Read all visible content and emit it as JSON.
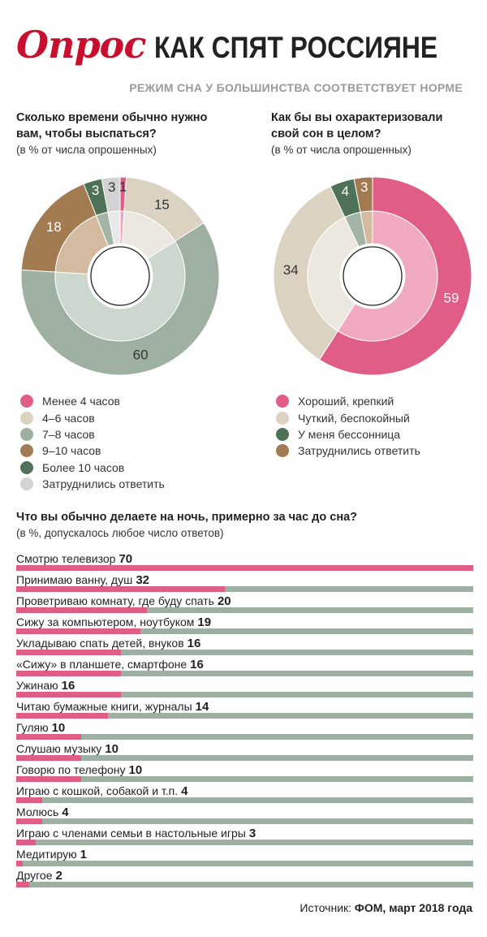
{
  "header": {
    "logo": "Опрос",
    "title": "КАК СПЯТ РОССИЯНЕ",
    "subtitle": "РЕЖИМ СНА У БОЛЬШИНСТВА СООТВЕТСТВУЕТ НОРМЕ"
  },
  "chart_data": [
    {
      "type": "pie",
      "title": "Сколько времени обычно нужно вам, чтобы выспаться?",
      "title_lines": [
        "Сколько времени обычно нужно",
        "вам, чтобы выспаться?"
      ],
      "subtitle": "(в % от числа опрошенных)",
      "legend_position": "bottom",
      "slices": [
        {
          "name": "Менее 4 часов",
          "value": 1,
          "outer": "#e05d86",
          "inner": "#f1a9c0"
        },
        {
          "name": "4–6 часов",
          "value": 15,
          "outer": "#dcd2c1",
          "inner": "#ede8df"
        },
        {
          "name": "7–8 часов",
          "value": 60,
          "outer": "#9db0a1",
          "inner": "#ccd8cd"
        },
        {
          "name": "9–10 часов",
          "value": 18,
          "outer": "#a37b52",
          "inner": "#d4bba0"
        },
        {
          "name": "Более 10 часов",
          "value": 3,
          "outer": "#4f7157",
          "inner": "#a2b5a4"
        },
        {
          "name": "Затруднились ответить",
          "value": 3,
          "outer": "#d3d3d3",
          "inner": "#e8e8e8"
        }
      ]
    },
    {
      "type": "pie",
      "title": "Как бы вы охарактеризовали свой сон в целом?",
      "title_lines": [
        "Как бы вы охарактеризовали",
        "свой сон в целом?"
      ],
      "subtitle": "(в % от числа опрошенных)",
      "legend_position": "bottom",
      "slices": [
        {
          "name": "Хороший, крепкий",
          "value": 59,
          "outer": "#e05d86",
          "inner": "#f1a9c0"
        },
        {
          "name": "Чуткий, беспокойный",
          "value": 34,
          "outer": "#dcd2c1",
          "inner": "#ede8df"
        },
        {
          "name": "У меня бессонница",
          "value": 4,
          "outer": "#4f7157",
          "inner": "#a2b5a4"
        },
        {
          "name": "Затруднились ответить",
          "value": 3,
          "outer": "#a37b52",
          "inner": "#d4bba0"
        }
      ]
    },
    {
      "type": "bar",
      "orientation": "horizontal",
      "title": "Что вы обычно делаете на ночь, примерно за час до сна?",
      "subtitle": "(в %, допускалось любое число ответов)",
      "xlim": [
        0,
        70
      ],
      "colors": {
        "fill": "#e05d86",
        "track": "#9db0a1"
      },
      "categories": [
        "Смотрю телевизор",
        "Принимаю ванну, душ",
        "Проветриваю комнату, где буду спать",
        "Сижу за компьютером, ноутбуком",
        "Укладываю спать детей, внуков",
        "«Сижу» в планшете, смартфоне",
        "Ужинаю",
        "Читаю бумажные книги, журналы",
        "Гуляю",
        "Слушаю музыку",
        "Говорю по телефону",
        "Играю с кошкой, собакой и т.п.",
        "Молюсь",
        "Играю с членами семьи в настольные игры",
        "Медитирую",
        "Другое"
      ],
      "values": [
        70,
        32,
        20,
        19,
        16,
        16,
        16,
        14,
        10,
        10,
        10,
        4,
        4,
        3,
        1,
        2
      ]
    }
  ],
  "footer": {
    "source_label": "Источник:",
    "source_value": "ФОМ, март 2018 года"
  }
}
